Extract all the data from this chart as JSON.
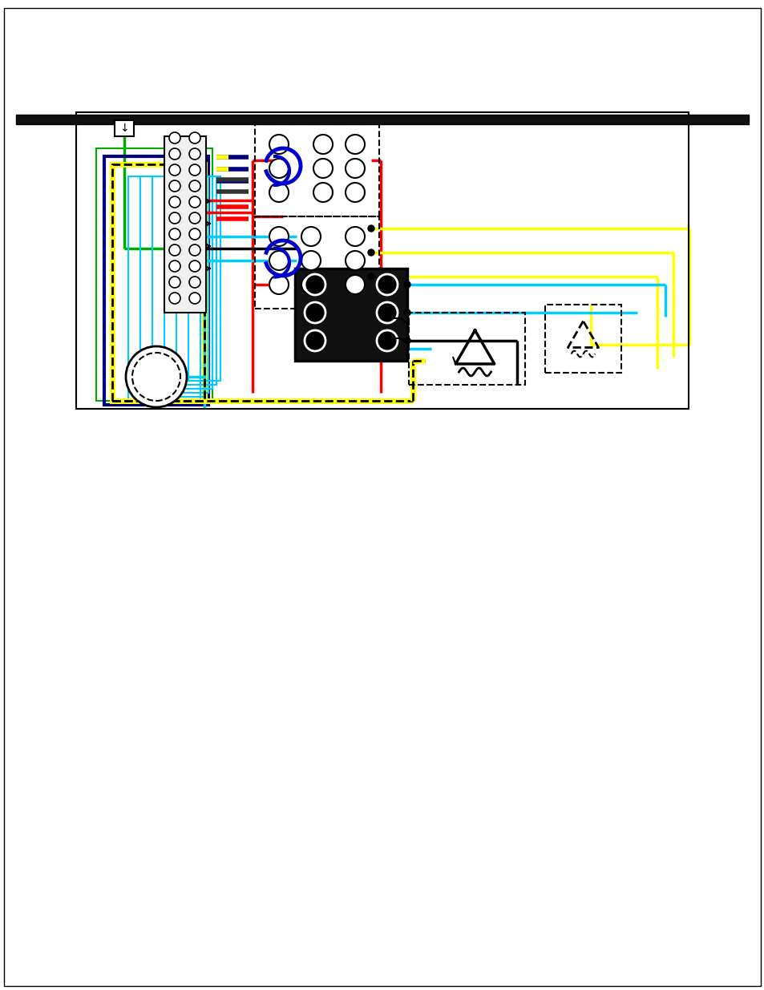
{
  "bg_color": "#ffffff",
  "border_color": "#000000",
  "title_bar_color": "#222222",
  "diagram_bg": "#ffffff",
  "wire_colors": {
    "red": "#ff0000",
    "blue": "#0000cc",
    "cyan": "#00ccff",
    "yellow": "#ffff00",
    "black": "#000000",
    "green": "#00aa00",
    "dark_blue": "#000080",
    "yellow_black_dashed": "#ffff00"
  },
  "figsize": [
    9.54,
    12.35
  ],
  "dpi": 100
}
